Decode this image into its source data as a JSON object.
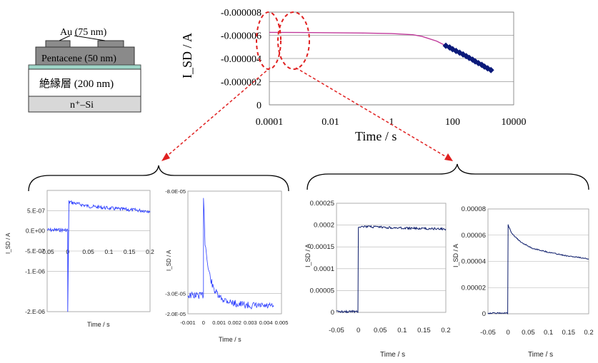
{
  "colors": {
    "main_line": "#c0399a",
    "main_markers": "#0b1a7a",
    "transient_blue": "#2a3cff",
    "transient_dark": "#0d1d6b",
    "dashed_red": "#e02020",
    "grid": "#999999"
  },
  "device": {
    "electrode_label": "Au (75 nm)",
    "semiconductor_label": "Pentacene (50 nm)",
    "insulator_label": "絶縁層 (200 nm)",
    "substrate_label": "n⁺–Si"
  },
  "chart_data": [
    {
      "id": "main",
      "type": "line",
      "xscale": "log",
      "xlabel": "Time / s",
      "ylabel": "I_SD / A",
      "xlim": [
        0.0001,
        10000
      ],
      "ylim": [
        0,
        -8e-06
      ],
      "x_ticks": [
        "0.0001",
        "0.01",
        "1",
        "100",
        "10000"
      ],
      "y_ticks": [
        "0",
        "-0.000002",
        "-0.000004",
        "-0.000006",
        "-0.000008"
      ],
      "series": [
        {
          "style": "line",
          "x": [
            0.0001,
            0.001,
            0.01,
            0.1,
            1,
            5,
            10,
            30,
            60,
            100,
            200,
            400,
            800,
            2000
          ],
          "y": [
            -6.25e-06,
            -6.24e-06,
            -6.22e-06,
            -6.2e-06,
            -6.15e-06,
            -6.05e-06,
            -5.9e-06,
            -5.5e-06,
            -5.1e-06,
            -4.8e-06,
            -4.4e-06,
            -4e-06,
            -3.6e-06,
            -3e-06
          ]
        },
        {
          "style": "markers",
          "x": [
            60,
            80,
            100,
            130,
            170,
            220,
            280,
            350,
            450,
            550,
            700,
            900,
            1100,
            1400,
            1800
          ],
          "y": [
            -5.1e-06,
            -4.95e-06,
            -4.8e-06,
            -4.65e-06,
            -4.5e-06,
            -4.35e-06,
            -4.2e-06,
            -4.05e-06,
            -3.9e-06,
            -3.75e-06,
            -3.6e-06,
            -3.45e-06,
            -3.3e-06,
            -3.15e-06,
            -3e-06
          ]
        }
      ]
    },
    {
      "id": "p1",
      "type": "line",
      "xlabel": "Time / s",
      "ylabel": "I_SD / A",
      "xlim": [
        -0.05,
        0.2
      ],
      "ylim": [
        -2e-06,
        1e-06
      ],
      "x_ticks": [
        "-0.05",
        "0",
        "0.05",
        "0.1",
        "0.15",
        "0.2"
      ],
      "y_ticks": [
        "5.E-07",
        "0.E+00",
        "-5.E-07",
        "-1.E-06",
        "-2.E-06"
      ],
      "series": [
        {
          "x": [
            -0.05,
            0.0,
            0.0,
            0.003,
            0.01,
            0.05,
            0.1,
            0.15,
            0.2
          ],
          "y": [
            2e-08,
            2e-08,
            -2e-06,
            7.2e-07,
            7e-07,
            6.1e-07,
            5.6e-07,
            5.2e-07,
            4.9e-07
          ]
        }
      ]
    },
    {
      "id": "p2",
      "type": "line",
      "xlabel": "Time / s",
      "ylabel": "I_SD / A",
      "xlim": [
        -0.001,
        0.005
      ],
      "ylim": [
        -2e-05,
        -8e-05
      ],
      "x_ticks": [
        "-0.001",
        "0",
        "0.001",
        "0.002",
        "0.003",
        "0.004",
        "0.005"
      ],
      "y_ticks": [
        "-2.0E-05",
        "-3.0E-05",
        "-8.0E-05"
      ],
      "series": [
        {
          "x": [
            -0.001,
            0.0,
            0.0,
            0.0001,
            0.0003,
            0.0006,
            0.001,
            0.0015,
            0.002,
            0.003,
            0.0045
          ],
          "y": [
            -2.9e-05,
            -2.9e-05,
            -7.8e-05,
            -5.5e-05,
            -4.2e-05,
            -3.3e-05,
            -2.8e-05,
            -2.65e-05,
            -2.5e-05,
            -2.4e-05,
            -2.35e-05
          ]
        }
      ]
    },
    {
      "id": "p3",
      "type": "line",
      "xlabel": "Time / s",
      "ylabel": "I_SD / A",
      "xlim": [
        -0.05,
        0.2
      ],
      "ylim": [
        0,
        0.00025
      ],
      "x_ticks": [
        "-0.05",
        "0",
        "0.05",
        "0.1",
        "0.15",
        "0.2"
      ],
      "y_ticks": [
        "0",
        "0.00005",
        "0.0001",
        "0.00015",
        "0.0002",
        "0.00025"
      ],
      "series": [
        {
          "x": [
            -0.05,
            -0.001,
            0.0,
            0.001,
            0.05,
            0.1,
            0.15,
            0.2
          ],
          "y": [
            2e-06,
            2e-06,
            0.000195,
            0.000197,
            0.000195,
            0.000193,
            0.000192,
            0.000191
          ]
        }
      ]
    },
    {
      "id": "p4",
      "type": "line",
      "xlabel": "Time / s",
      "ylabel": "I_SD / A",
      "xlim": [
        -0.05,
        0.2
      ],
      "ylim": [
        0,
        8e-05
      ],
      "x_ticks": [
        "-0.05",
        "0",
        "0.05",
        "0.1",
        "0.15",
        "0.2"
      ],
      "y_ticks": [
        "0",
        "0.00002",
        "0.00004",
        "0.00006",
        "0.00008"
      ],
      "series": [
        {
          "x": [
            -0.05,
            -0.001,
            0.0,
            0.002,
            0.01,
            0.03,
            0.06,
            0.1,
            0.15,
            0.2
          ],
          "y": [
            5e-07,
            5e-07,
            6.8e-05,
            6.6e-05,
            6.1e-05,
            5.5e-05,
            5e-05,
            4.7e-05,
            4.4e-05,
            4.2e-05
          ]
        }
      ]
    }
  ]
}
